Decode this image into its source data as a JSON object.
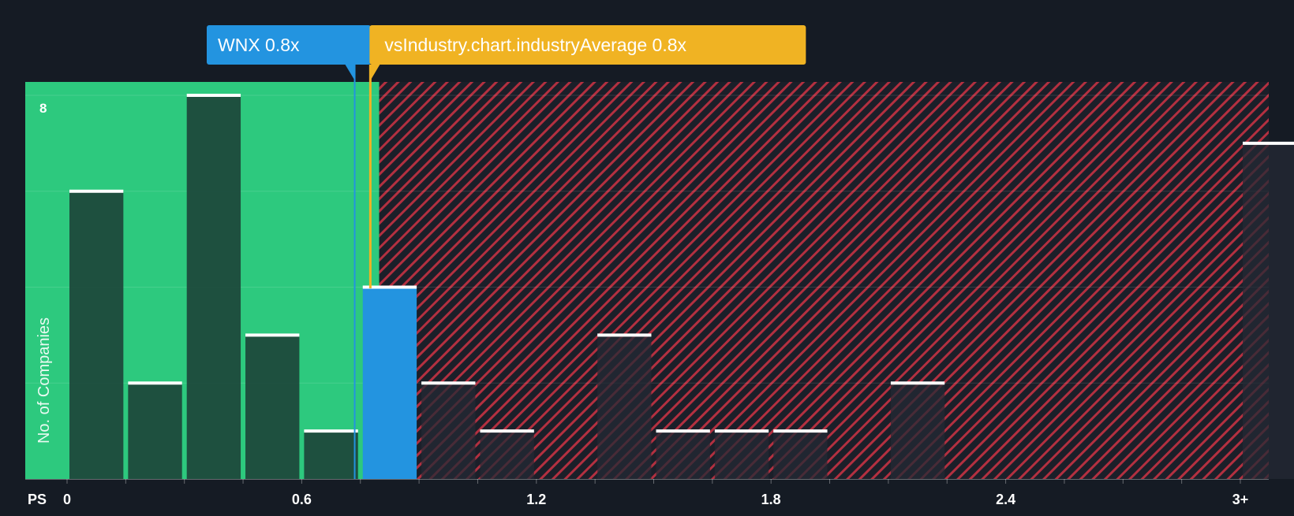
{
  "chart_data": {
    "type": "bar",
    "title": "",
    "xlabel": "PS",
    "ylabel": "No. of Companies",
    "bin_width": 0.15,
    "x_range": [
      0,
      3.0
    ],
    "ylim": [
      0,
      8.3
    ],
    "y_ticks": [
      8
    ],
    "y_tick_labels": [
      "8"
    ],
    "x_ticks": [
      0,
      0.6,
      1.2,
      1.8,
      2.4,
      3.0
    ],
    "x_tick_labels": [
      "0",
      "0.6",
      "1.2",
      "1.8",
      "2.4",
      "3+"
    ],
    "bins": [
      {
        "start": 0.0,
        "value": 6,
        "group": "below"
      },
      {
        "start": 0.15,
        "value": 2,
        "group": "below"
      },
      {
        "start": 0.3,
        "value": 8,
        "group": "below"
      },
      {
        "start": 0.45,
        "value": 3,
        "group": "below"
      },
      {
        "start": 0.6,
        "value": 1,
        "group": "below"
      },
      {
        "start": 0.75,
        "value": 4,
        "group": "highlight"
      },
      {
        "start": 0.9,
        "value": 2,
        "group": "above"
      },
      {
        "start": 1.05,
        "value": 1,
        "group": "above"
      },
      {
        "start": 1.35,
        "value": 3,
        "group": "above"
      },
      {
        "start": 1.5,
        "value": 1,
        "group": "above"
      },
      {
        "start": 1.65,
        "value": 1,
        "group": "above"
      },
      {
        "start": 1.8,
        "value": 1,
        "group": "above"
      },
      {
        "start": 2.1,
        "value": 2,
        "group": "above"
      },
      {
        "start": 3.0,
        "value": 7,
        "group": "above"
      }
    ],
    "company_marker": {
      "label": "WNX 0.8x",
      "value": 0.8
    },
    "industry_marker": {
      "label": "vsIndustry.chart.industryAverage 0.8x",
      "value": 0.84
    },
    "fair_zone_end": 0.8
  },
  "colors": {
    "background": "#151b24",
    "fair_zone": "#2dc97e",
    "bar_below": "#1e4a3c",
    "bar_highlight": "#2394e0",
    "bar_above": "#242934",
    "overvalued_zone": "#b33040",
    "company_marker": "#2394e0",
    "industry_marker": "#f0b323",
    "bar_cap": "#ffffff",
    "axis_text": "#ffffff"
  }
}
